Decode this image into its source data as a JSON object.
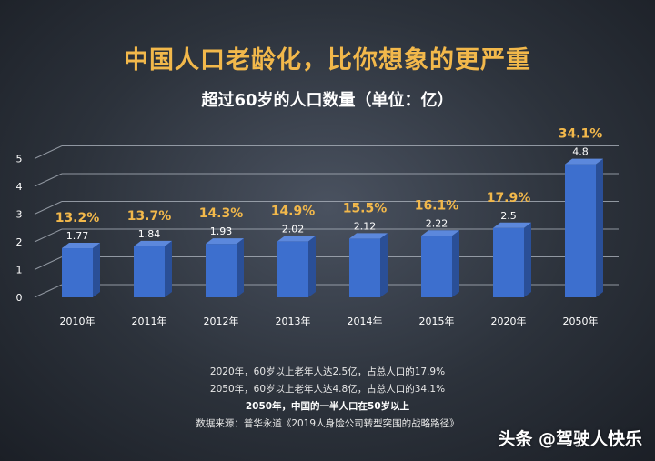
{
  "title": "中国人口老龄化，比你想象的更严重",
  "subtitle": "超过60岁的人口数量（单位：亿）",
  "chart_data": {
    "type": "bar",
    "categories": [
      "2010年",
      "2011年",
      "2012年",
      "2013年",
      "2014年",
      "2015年",
      "2020年",
      "2050年"
    ],
    "values": [
      1.77,
      1.84,
      1.93,
      2.02,
      2.12,
      2.22,
      2.5,
      4.8
    ],
    "value_labels": [
      "1.77",
      "1.84",
      "1.93",
      "2.02",
      "2.12",
      "2.22",
      "2.5",
      "4.8"
    ],
    "percent_labels": [
      "13.2%",
      "13.7%",
      "14.3%",
      "14.9%",
      "15.5%",
      "16.1%",
      "17.9%",
      "34.1%"
    ],
    "y_ticks": [
      "0",
      "1",
      "2",
      "3",
      "4",
      "5"
    ],
    "ylim": [
      0,
      5
    ],
    "grid": true,
    "bar_color": "#3d6fce",
    "percent_color": "#f2b84b"
  },
  "notes": {
    "line1": "2020年，60岁以上老年人达2.5亿，占总人口的17.9%",
    "line2": "2050年，60岁以上老年人达4.8亿，占总人口的34.1%",
    "line3": "2050年，中国的一半人口在50岁以上",
    "source": "数据来源：普华永道《2019人身险公司转型突围的战略路径》"
  },
  "watermark": "头条 @驾驶人快乐"
}
